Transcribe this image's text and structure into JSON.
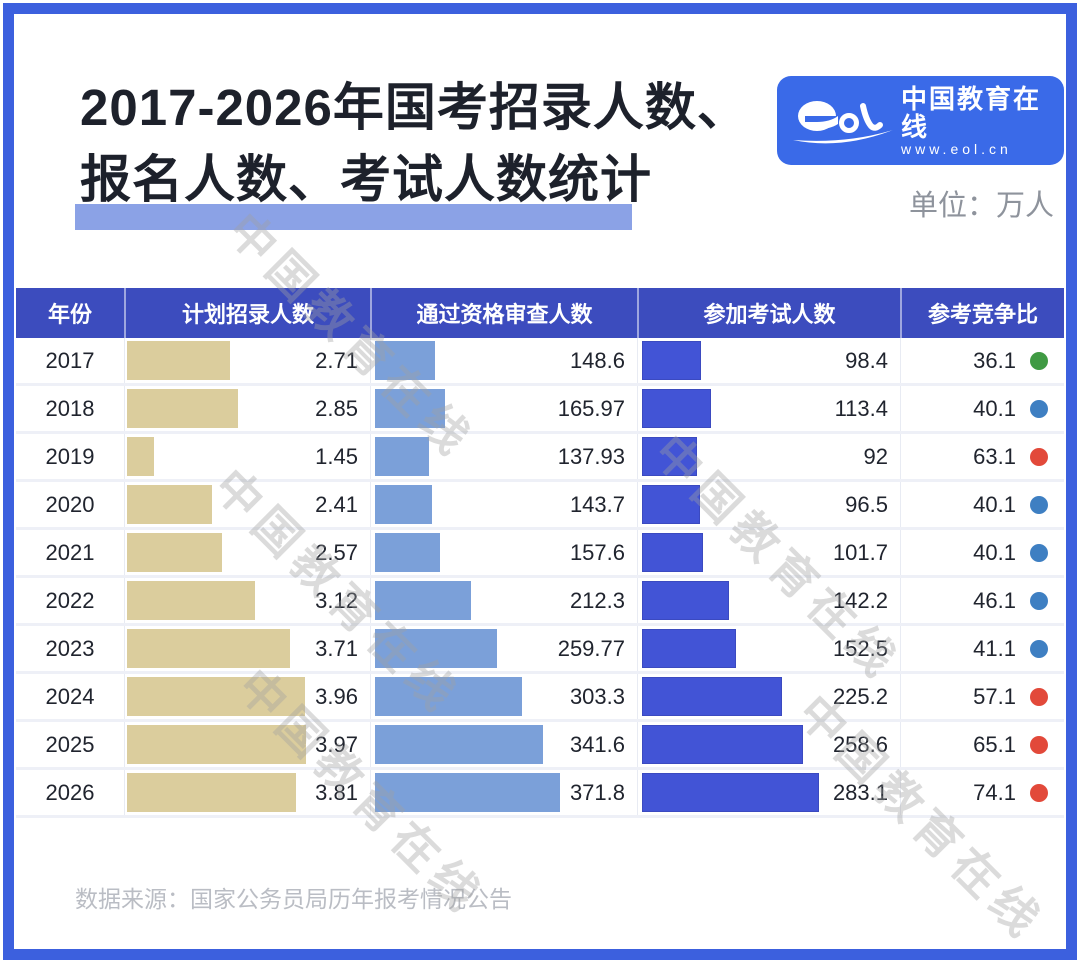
{
  "header": {
    "title_line1": "2017-2026年国考招录人数、",
    "title_line2": "报名人数、考试人数统计",
    "unit_label": "单位：万人",
    "logo": {
      "name_zh": "中国教育在线",
      "url": "www.eol.cn"
    }
  },
  "watermark": {
    "text": "中国教育在线"
  },
  "colors": {
    "frame": "#3c60de",
    "header_bg": "#3c4cbe",
    "logo_bg": "#3a6ae8",
    "title_underline": "#8ba2e6",
    "plan_bar": "#dbcd9d",
    "review_bar": "#7ba0d9",
    "exam_bar": "#4254d6",
    "exam_bar_border": "#3b4ac0",
    "dot_green": "#3f9a43",
    "dot_blue": "#3e7fc2",
    "dot_red": "#e2493a"
  },
  "table": {
    "columns": [
      "年份",
      "计划招录人数",
      "通过资格审查人数",
      "参加考试人数",
      "参考竞争比"
    ],
    "rows": [
      {
        "year": "2017",
        "plan": "2.71",
        "review": "148.6",
        "exam": "98.4",
        "ratio": "36.1",
        "dot": "green"
      },
      {
        "year": "2018",
        "plan": "2.85",
        "review": "165.97",
        "exam": "113.4",
        "ratio": "40.1",
        "dot": "blue"
      },
      {
        "year": "2019",
        "plan": "1.45",
        "review": "137.93",
        "exam": "92",
        "ratio": "63.1",
        "dot": "red"
      },
      {
        "year": "2020",
        "plan": "2.41",
        "review": "143.7",
        "exam": "96.5",
        "ratio": "40.1",
        "dot": "blue"
      },
      {
        "year": "2021",
        "plan": "2.57",
        "review": "157.6",
        "exam": "101.7",
        "ratio": "40.1",
        "dot": "blue"
      },
      {
        "year": "2022",
        "plan": "3.12",
        "review": "212.3",
        "exam": "142.2",
        "ratio": "46.1",
        "dot": "blue"
      },
      {
        "year": "2023",
        "plan": "3.71",
        "review": "259.77",
        "exam": "152.5",
        "ratio": "41.1",
        "dot": "blue"
      },
      {
        "year": "2024",
        "plan": "3.96",
        "review": "303.3",
        "exam": "225.2",
        "ratio": "57.1",
        "dot": "red"
      },
      {
        "year": "2025",
        "plan": "3.97",
        "review": "341.6",
        "exam": "258.6",
        "ratio": "65.1",
        "dot": "red"
      },
      {
        "year": "2026",
        "plan": "3.81",
        "review": "371.8",
        "exam": "283.1",
        "ratio": "74.1",
        "dot": "red"
      }
    ]
  },
  "footer": {
    "source": "数据来源：国家公务员局历年报考情况公告"
  },
  "chart_data": {
    "type": "bar",
    "title": "2017-2026年国考招录人数、报名人数、考试人数统计",
    "unit": "万人",
    "categories": [
      "2017",
      "2018",
      "2019",
      "2020",
      "2021",
      "2022",
      "2023",
      "2024",
      "2025",
      "2026"
    ],
    "series": [
      {
        "name": "计划招录人数",
        "values": [
          2.71,
          2.85,
          1.45,
          2.41,
          2.57,
          3.12,
          3.71,
          3.96,
          3.97,
          3.81
        ]
      },
      {
        "name": "通过资格审查人数",
        "values": [
          148.6,
          165.97,
          137.93,
          143.7,
          157.6,
          212.3,
          259.77,
          303.3,
          341.6,
          371.8
        ]
      },
      {
        "name": "参加考试人数",
        "values": [
          98.4,
          113.4,
          92,
          96.5,
          101.7,
          142.2,
          152.5,
          225.2,
          258.6,
          283.1
        ]
      },
      {
        "name": "参考竞争比",
        "values": [
          36.1,
          40.1,
          63.1,
          40.1,
          40.1,
          46.1,
          41.1,
          57.1,
          65.1,
          74.1
        ]
      }
    ],
    "legend_position": "table-header",
    "grid": false,
    "source": "数据来源：国家公务员局历年报考情况公告"
  }
}
